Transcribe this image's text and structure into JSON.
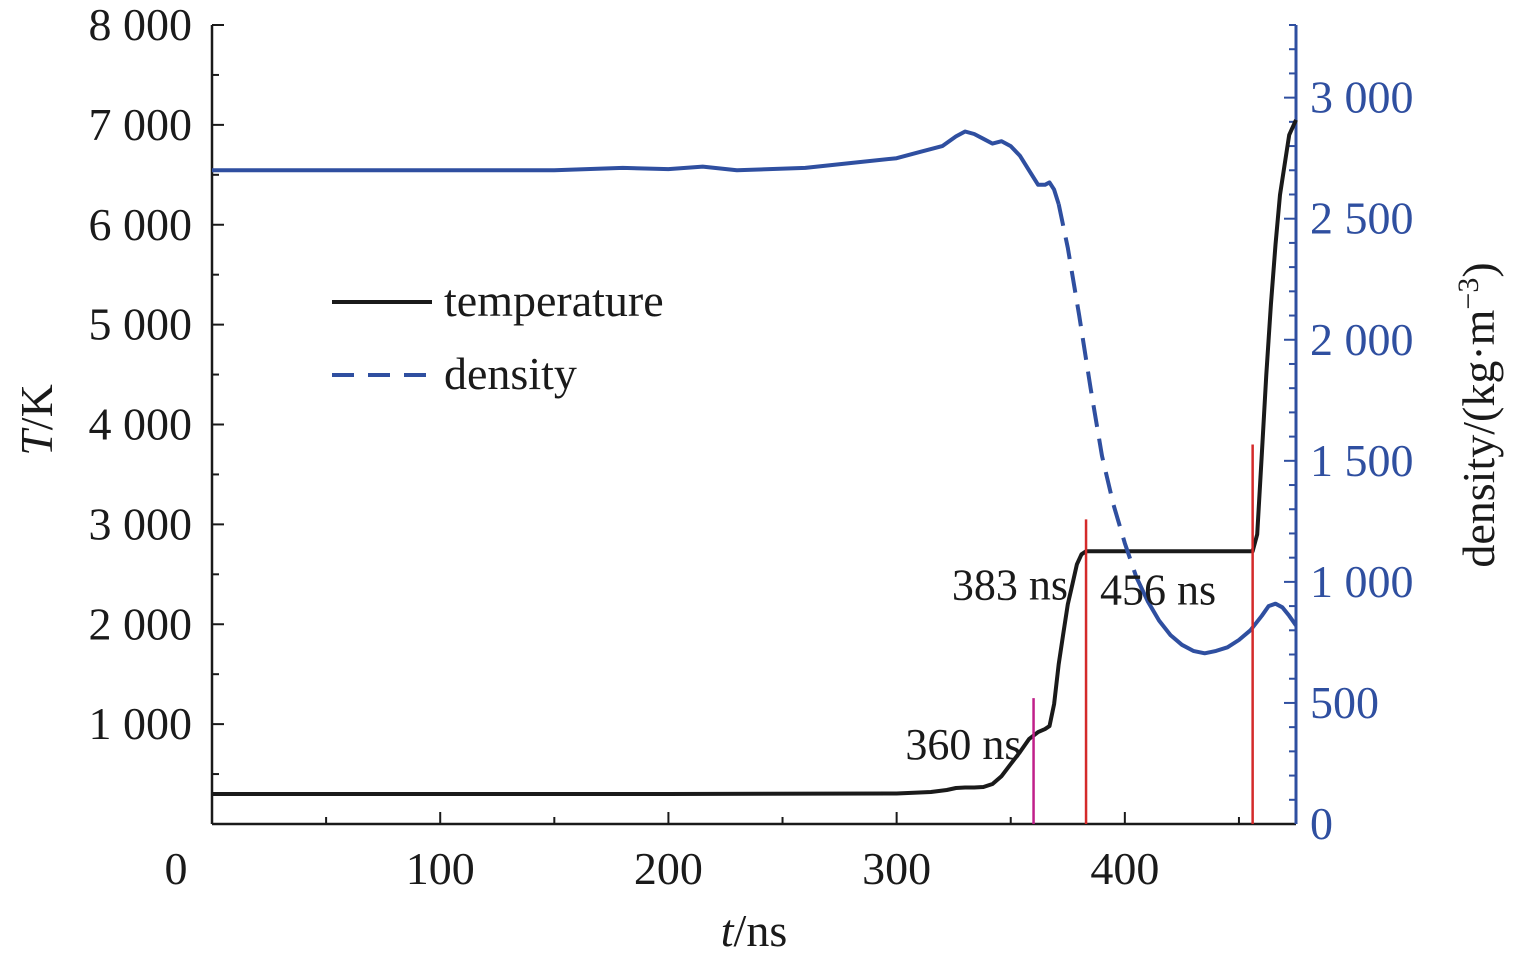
{
  "chart_data": {
    "type": "line",
    "xlabel_italic": "t",
    "xlabel_unit": "/ns",
    "ylabel_italic": "T",
    "ylabel_unit": "/K",
    "y2label": "density/(kg·m",
    "y2label_sup": "−3",
    "y2label_close": ")",
    "xlim": [
      0,
      475
    ],
    "ylim": [
      0,
      8000
    ],
    "y2lim": [
      0,
      3300
    ],
    "x_ticks": [
      0,
      100,
      200,
      300,
      400
    ],
    "x_tick_labels": [
      "0",
      "100",
      "200",
      "300",
      "400"
    ],
    "y_ticks": [
      1000,
      2000,
      3000,
      4000,
      5000,
      6000,
      7000,
      8000
    ],
    "y_tick_labels": [
      "1 000",
      "2 000",
      "3 000",
      "4 000",
      "5 000",
      "6 000",
      "7 000",
      "8 000"
    ],
    "y2_ticks": [
      0,
      500,
      1000,
      1500,
      2000,
      2500,
      3000
    ],
    "y2_tick_labels": [
      "0",
      "500",
      "1 000",
      "1 500",
      "2 000",
      "2 500",
      "3 000"
    ],
    "legend_position": "upper-left",
    "colors": {
      "temperature": "#1a1a1a",
      "density": "#2f4fa0",
      "marker_360": "#c0208a",
      "marker_other": "#d42a2a"
    },
    "series": [
      {
        "name": "temperature",
        "axis": "left",
        "style": "solid",
        "x": [
          0,
          100,
          200,
          300,
          315,
          322,
          326,
          330,
          334,
          338,
          342,
          346,
          350,
          354,
          358,
          362,
          365,
          367,
          369,
          371,
          373,
          375,
          377,
          379,
          381,
          383,
          400,
          420,
          440,
          456,
          458,
          460,
          462,
          464,
          466,
          468,
          470,
          472,
          475
        ],
        "y": [
          300,
          300,
          300,
          305,
          320,
          340,
          360,
          365,
          365,
          370,
          400,
          480,
          600,
          720,
          850,
          920,
          950,
          980,
          1200,
          1600,
          1900,
          2200,
          2400,
          2600,
          2700,
          2730,
          2730,
          2730,
          2730,
          2730,
          2900,
          3700,
          4500,
          5200,
          5800,
          6300,
          6600,
          6900,
          7050
        ]
      },
      {
        "name": "density",
        "axis": "right",
        "style": "solid-then-dashed",
        "x": [
          0,
          50,
          100,
          150,
          180,
          200,
          215,
          230,
          260,
          280,
          300,
          310,
          320,
          326,
          330,
          334,
          338,
          342,
          346,
          350,
          354,
          358,
          362,
          365,
          367,
          369,
          371,
          375,
          380,
          385,
          390,
          395,
          400,
          405,
          410,
          415,
          420,
          425,
          430,
          435,
          440,
          445,
          450,
          455,
          460,
          463,
          466,
          469,
          472,
          475
        ],
        "y": [
          2700,
          2700,
          2700,
          2700,
          2710,
          2705,
          2715,
          2700,
          2710,
          2730,
          2750,
          2775,
          2800,
          2840,
          2860,
          2850,
          2830,
          2810,
          2820,
          2800,
          2760,
          2700,
          2640,
          2640,
          2650,
          2620,
          2560,
          2380,
          2100,
          1800,
          1520,
          1320,
          1160,
          1020,
          920,
          840,
          780,
          740,
          715,
          705,
          715,
          730,
          760,
          800,
          860,
          900,
          910,
          895,
          860,
          820
        ]
      }
    ],
    "markers": [
      {
        "x": 360,
        "label": "360 ns",
        "y_top": 1260,
        "color_key": "marker_360"
      },
      {
        "x": 383,
        "label": "383 ns",
        "y_top": 3050,
        "color_key": "marker_other"
      },
      {
        "x": 456,
        "label": "456 ns",
        "y_top": 3800,
        "color_key": "marker_other"
      }
    ]
  }
}
